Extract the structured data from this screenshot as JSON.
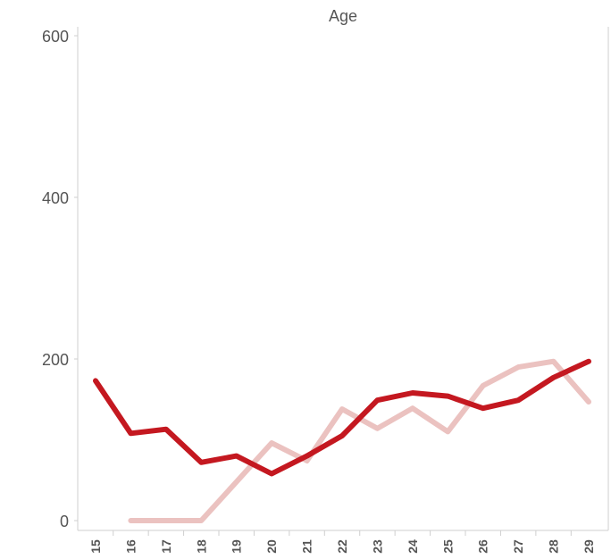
{
  "chart_data": {
    "type": "line",
    "title": "Age",
    "xlabel": "",
    "ylabel": "",
    "x": [
      "15",
      "16",
      "17",
      "18",
      "19",
      "20",
      "21",
      "22",
      "23",
      "24",
      "25",
      "26",
      "27",
      "28",
      "29"
    ],
    "yticks": [
      0,
      200,
      400,
      600
    ],
    "ylim": [
      0,
      600
    ],
    "grid": false,
    "legend": "none",
    "series": [
      {
        "color": "#c41820",
        "values": [
          173,
          108,
          113,
          72,
          80,
          58,
          80,
          105,
          149,
          158,
          154,
          139,
          149,
          177,
          197
        ]
      },
      {
        "color": "#ebc2c0",
        "values": [
          null,
          0,
          0,
          0,
          48,
          96,
          74,
          138,
          114,
          139,
          110,
          167,
          190,
          197,
          147
        ]
      }
    ]
  }
}
